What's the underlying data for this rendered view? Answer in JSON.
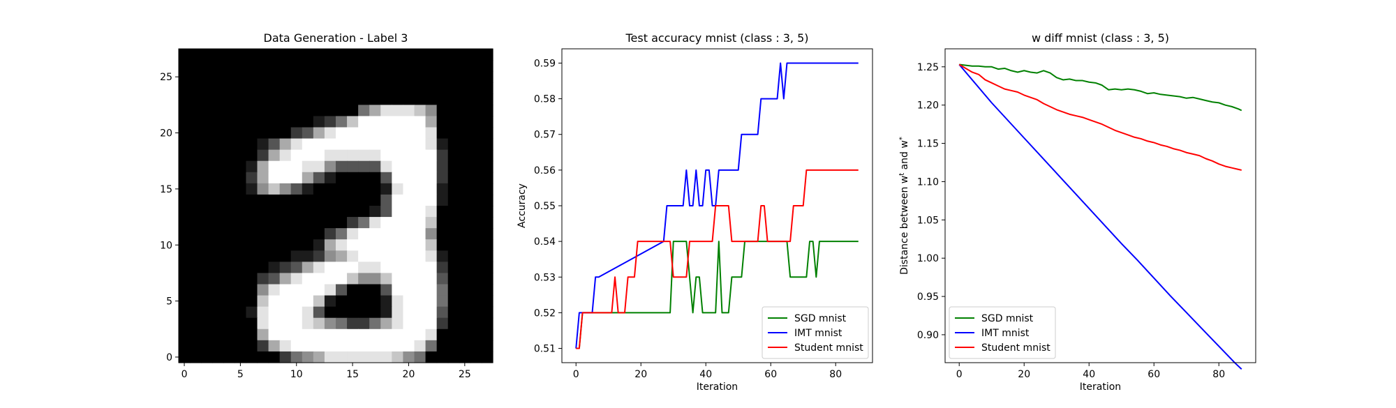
{
  "chart_data": [
    {
      "type": "heatmap",
      "title": "Data Generation - Label 3",
      "colormap": "gray",
      "xlim": [
        -0.5,
        27.5
      ],
      "ylim": [
        27.5,
        -0.5
      ],
      "xticks": [
        0,
        5,
        10,
        15,
        20,
        25
      ],
      "yticks": [
        0,
        5,
        10,
        15,
        20,
        25
      ],
      "image": [
        "0000000000000000000000000000",
        "0000000000000000000000000000",
        "0000000000000000000000000000",
        "0000000000000000000000000000",
        "0000000000000000000000000000",
        "0000000000000000468887500000",
        "0000000000001247999999600000",
        "0000000000236899999999800000",
        "0000000136899999999999810000",
        "0000000268999888889999920000",
        "0000001699988533338999920000",
        "0000002699963100003999920000",
        "0000001575310000001899910000",
        "0000000000000000003999910000",
        "0000000000000000013999800000",
        "0000000000000002489999700000",
        "0000000000000248999999500000",
        "0000000000001689999999700000",
        "0000000000112568999999810000",
        "0000000012368999889999920000",
        "0000000236899997557999930000",
        "0000000589999830003999940000",
        "0000000799997100001899940000",
        "0000001899983000001899930000",
        "0000000899987542246899920000",
        "0000000699999999999999800000",
        "0000000268999999999998400000",
        "0000000002456888888754000000"
      ]
    },
    {
      "type": "line",
      "title": "Test accuracy mnist (class : 3, 5)",
      "xlabel": "Iteration",
      "ylabel": "Accuracy",
      "xlim": [
        -4.35,
        91.35
      ],
      "ylim": [
        0.506,
        0.594
      ],
      "xticks": [
        0,
        20,
        40,
        60,
        80
      ],
      "yticks": [
        0.51,
        0.52,
        0.53,
        0.54,
        0.55,
        0.56,
        0.57,
        0.58,
        0.59
      ],
      "legend": "lower-right",
      "series": [
        {
          "name": "SGD mnist",
          "color": "#008000",
          "x": [
            0,
            1,
            2,
            29,
            30,
            34,
            35,
            36,
            37,
            38,
            39,
            40,
            41,
            42,
            43,
            44,
            45,
            46,
            47,
            48,
            49,
            50,
            51,
            52,
            65,
            66,
            71,
            72,
            73,
            74,
            75,
            87
          ],
          "y": [
            0.51,
            0.51,
            0.52,
            0.52,
            0.54,
            0.54,
            0.53,
            0.52,
            0.53,
            0.53,
            0.52,
            0.52,
            0.52,
            0.52,
            0.52,
            0.54,
            0.52,
            0.52,
            0.52,
            0.53,
            0.53,
            0.53,
            0.53,
            0.54,
            0.54,
            0.53,
            0.53,
            0.54,
            0.54,
            0.53,
            0.54,
            0.54
          ]
        },
        {
          "name": "IMT mnist",
          "color": "#0000ff",
          "x": [
            0,
            1,
            5,
            6,
            7,
            27,
            28,
            33,
            34,
            35,
            36,
            37,
            38,
            39,
            40,
            41,
            42,
            43,
            44,
            50,
            51,
            56,
            57,
            62,
            63,
            64,
            65,
            87
          ],
          "y": [
            0.51,
            0.52,
            0.52,
            0.53,
            0.53,
            0.54,
            0.55,
            0.55,
            0.56,
            0.55,
            0.55,
            0.56,
            0.55,
            0.55,
            0.56,
            0.56,
            0.55,
            0.55,
            0.56,
            0.56,
            0.57,
            0.57,
            0.58,
            0.58,
            0.59,
            0.58,
            0.59,
            0.59
          ]
        },
        {
          "name": "Student mnist",
          "color": "#ff0000",
          "x": [
            0,
            1,
            2,
            11,
            12,
            13,
            14,
            15,
            16,
            17,
            18,
            19,
            20,
            29,
            30,
            34,
            35,
            42,
            43,
            47,
            48,
            55,
            56,
            57,
            58,
            59,
            60,
            66,
            67,
            70,
            71,
            87
          ],
          "y": [
            0.51,
            0.51,
            0.52,
            0.52,
            0.53,
            0.52,
            0.52,
            0.52,
            0.53,
            0.53,
            0.53,
            0.54,
            0.54,
            0.54,
            0.53,
            0.53,
            0.54,
            0.54,
            0.55,
            0.55,
            0.54,
            0.54,
            0.54,
            0.55,
            0.55,
            0.54,
            0.54,
            0.54,
            0.55,
            0.55,
            0.56,
            0.56
          ]
        }
      ]
    },
    {
      "type": "line",
      "title": "w diff mnist (class : 3, 5)",
      "xlabel": "Iteration",
      "ylabel": "Distance between w^t and w^*",
      "xlim": [
        -4.35,
        91.35
      ],
      "ylim": [
        0.8635,
        1.2735
      ],
      "xticks": [
        0,
        20,
        40,
        60,
        80
      ],
      "yticks": [
        0.9,
        0.95,
        1.0,
        1.05,
        1.1,
        1.15,
        1.2,
        1.25
      ],
      "legend": "lower-left",
      "series": [
        {
          "name": "SGD mnist",
          "color": "#008000",
          "x": [
            0,
            2,
            4,
            6,
            8,
            10,
            12,
            14,
            16,
            18,
            20,
            22,
            24,
            26,
            28,
            30,
            32,
            34,
            36,
            38,
            40,
            42,
            44,
            46,
            48,
            50,
            52,
            54,
            56,
            58,
            60,
            62,
            64,
            66,
            68,
            70,
            72,
            74,
            76,
            78,
            80,
            82,
            84,
            86,
            87
          ],
          "y": [
            1.253,
            1.252,
            1.251,
            1.251,
            1.25,
            1.25,
            1.247,
            1.248,
            1.245,
            1.243,
            1.245,
            1.243,
            1.242,
            1.245,
            1.242,
            1.236,
            1.233,
            1.234,
            1.232,
            1.232,
            1.23,
            1.229,
            1.226,
            1.22,
            1.221,
            1.22,
            1.221,
            1.22,
            1.218,
            1.215,
            1.216,
            1.214,
            1.213,
            1.212,
            1.211,
            1.209,
            1.21,
            1.208,
            1.206,
            1.204,
            1.203,
            1.2,
            1.198,
            1.195,
            1.193
          ]
        },
        {
          "name": "IMT mnist",
          "color": "#0000ff",
          "x": [
            0,
            5,
            10,
            15,
            20,
            25,
            30,
            35,
            40,
            45,
            50,
            55,
            60,
            65,
            70,
            75,
            80,
            85,
            87
          ],
          "y": [
            1.253,
            1.228,
            1.203,
            1.18,
            1.157,
            1.134,
            1.111,
            1.088,
            1.065,
            1.042,
            1.019,
            0.997,
            0.974,
            0.951,
            0.929,
            0.907,
            0.885,
            0.863,
            0.855
          ]
        },
        {
          "name": "Student mnist",
          "color": "#ff0000",
          "x": [
            0,
            2,
            4,
            6,
            8,
            10,
            12,
            14,
            16,
            18,
            20,
            22,
            24,
            26,
            28,
            30,
            32,
            34,
            36,
            38,
            40,
            42,
            44,
            46,
            48,
            50,
            52,
            54,
            56,
            58,
            60,
            62,
            64,
            66,
            68,
            70,
            72,
            74,
            76,
            78,
            80,
            82,
            84,
            86,
            87
          ],
          "y": [
            1.253,
            1.248,
            1.243,
            1.24,
            1.233,
            1.229,
            1.225,
            1.221,
            1.219,
            1.217,
            1.213,
            1.21,
            1.207,
            1.202,
            1.198,
            1.194,
            1.191,
            1.188,
            1.186,
            1.184,
            1.181,
            1.178,
            1.175,
            1.171,
            1.167,
            1.164,
            1.161,
            1.158,
            1.156,
            1.153,
            1.151,
            1.148,
            1.146,
            1.143,
            1.141,
            1.138,
            1.136,
            1.134,
            1.13,
            1.127,
            1.123,
            1.12,
            1.118,
            1.116,
            1.115
          ]
        }
      ]
    }
  ]
}
